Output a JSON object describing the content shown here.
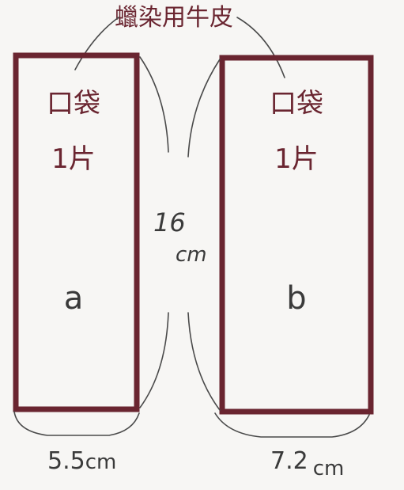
{
  "title": "蠟染用牛皮",
  "height_label": {
    "value": "16",
    "unit": "cm"
  },
  "pieces": [
    {
      "id": "a",
      "name": "口袋",
      "quantity": "1片",
      "letter": "a",
      "width": "5.5",
      "width_unit": "cm"
    },
    {
      "id": "b",
      "name": "口袋",
      "quantity": "1片",
      "letter": "b",
      "width": "7.2",
      "width_unit": "cm"
    }
  ],
  "colors": {
    "ink": "#6a2530",
    "line": "#4a4a4a",
    "background": "#f7f6f4"
  }
}
